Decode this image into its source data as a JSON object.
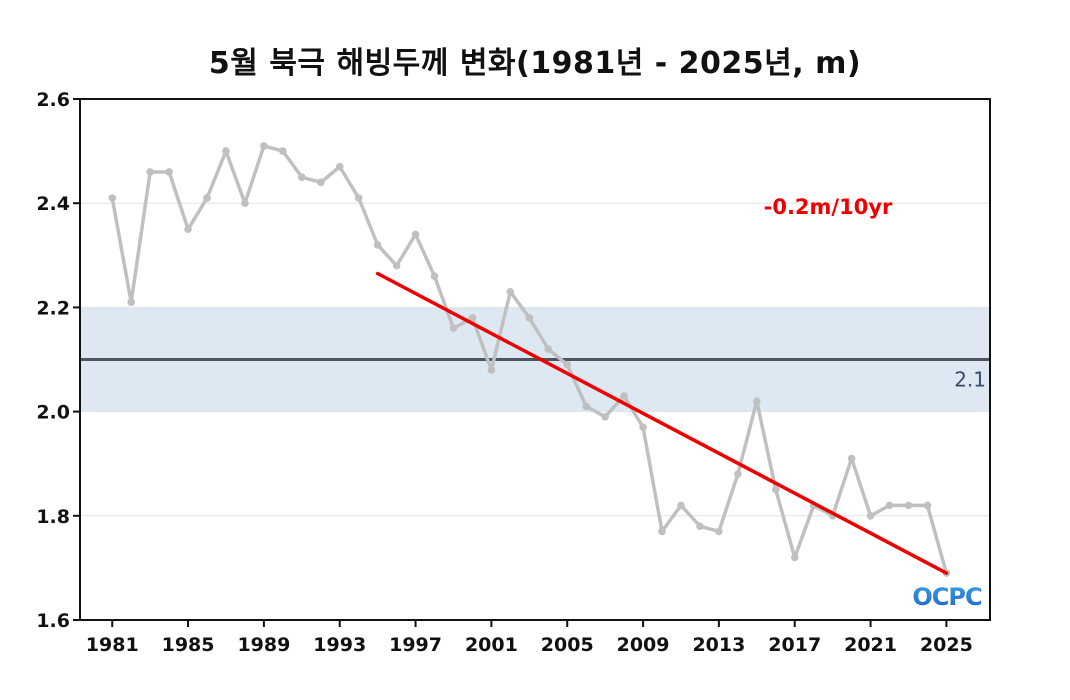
{
  "chart_data": {
    "type": "line",
    "title": "5월 북극 해빙두께 변화(1981년 - 2025년, m)",
    "xlabel": "",
    "ylabel": "",
    "xlim": [
      1979.3,
      2027.3
    ],
    "ylim": [
      1.6,
      2.6
    ],
    "xticks": [
      1981,
      1985,
      1989,
      1993,
      1997,
      2001,
      2005,
      2009,
      2013,
      2017,
      2021,
      2025
    ],
    "yticks": [
      1.6,
      1.8,
      2.0,
      2.2,
      2.4,
      2.6
    ],
    "ytick_labels": [
      "1.6",
      "1.8",
      "2.0",
      "2.2",
      "2.4",
      "2.6"
    ],
    "grid": true,
    "x": [
      1981,
      1982,
      1983,
      1984,
      1985,
      1986,
      1987,
      1988,
      1989,
      1990,
      1991,
      1992,
      1993,
      1994,
      1995,
      1996,
      1997,
      1998,
      1999,
      2000,
      2001,
      2002,
      2003,
      2004,
      2005,
      2006,
      2007,
      2008,
      2009,
      2010,
      2011,
      2012,
      2013,
      2014,
      2015,
      2016,
      2017,
      2018,
      2019,
      2020,
      2021,
      2022,
      2023,
      2024,
      2025
    ],
    "series": [
      {
        "values": [
          2.41,
          2.21,
          2.46,
          2.46,
          2.35,
          2.41,
          2.5,
          2.4,
          2.51,
          2.5,
          2.45,
          2.44,
          2.47,
          2.41,
          2.32,
          2.28,
          2.34,
          2.26,
          2.16,
          2.18,
          2.08,
          2.23,
          2.18,
          2.12,
          2.09,
          2.01,
          1.99,
          2.03,
          1.97,
          1.77,
          1.82,
          1.78,
          1.77,
          1.88,
          2.02,
          1.85,
          1.72,
          1.82,
          1.8,
          1.91,
          1.8,
          1.82,
          1.82,
          1.82,
          1.69
        ],
        "color": "#c0c0c0"
      }
    ],
    "mean_line": {
      "value": 2.1,
      "label": "2.1",
      "color": "#4a5560"
    },
    "band": {
      "from": 2.0,
      "to": 2.2,
      "color": "#dde8f3"
    },
    "trend": {
      "from": [
        1995,
        2.265
      ],
      "to": [
        2025,
        1.69
      ],
      "label": "-0.2m/10yr",
      "color": "#ee0000"
    },
    "logo": {
      "text": "OCPC",
      "colors": [
        "#1e63c8",
        "#3aa0e8"
      ]
    }
  }
}
